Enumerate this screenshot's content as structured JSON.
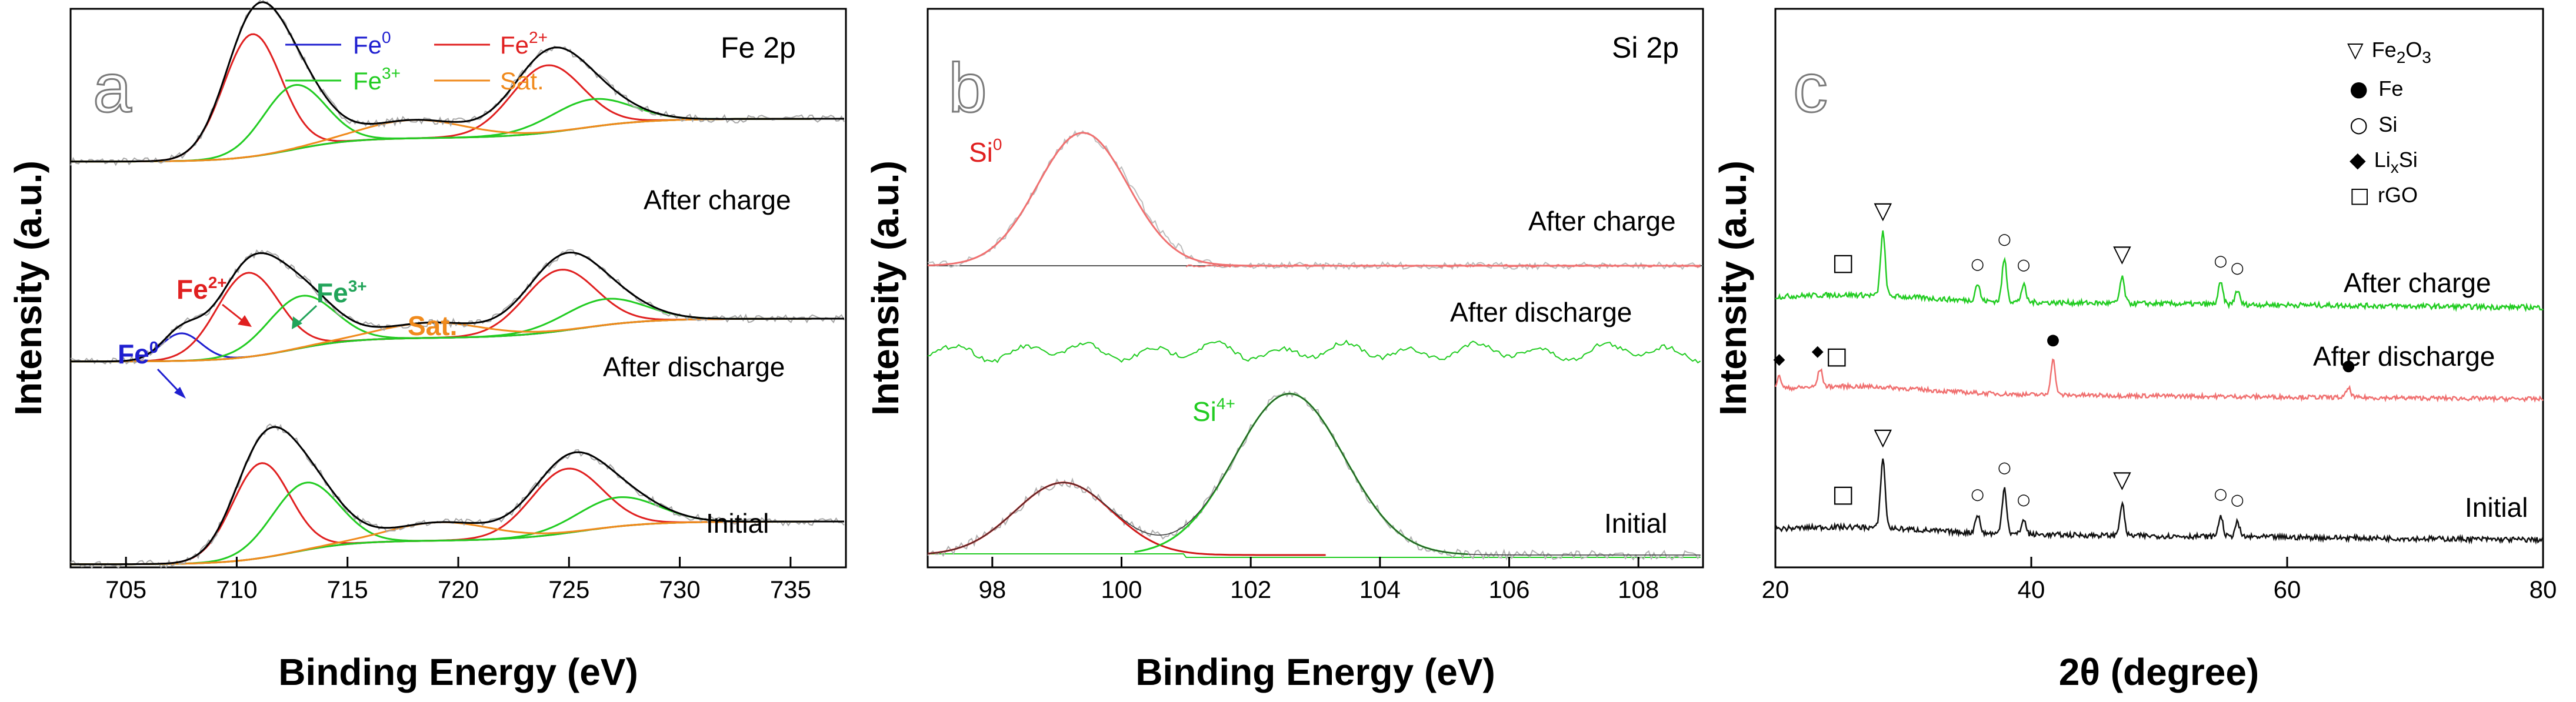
{
  "chart_data": [
    {
      "type": "line",
      "panel": "a",
      "title": "Fe 2p",
      "xlabel": "Binding Energy (eV)",
      "ylabel": "Intensity (a.u.)",
      "xlim": [
        702.5,
        737.5
      ],
      "x_ticks": [
        "705",
        "710",
        "715",
        "720",
        "725",
        "730",
        "735"
      ],
      "legend": [
        {
          "base": "Fe",
          "sup": "0",
          "color": "#1f1fd0"
        },
        {
          "base": "Fe",
          "sup": "2+",
          "color": "#e02020"
        },
        {
          "base": "Fe",
          "sup": "3+",
          "color": "#22cc22"
        },
        {
          "base": "Sat.",
          "sup": "",
          "color": "#f08a1c"
        }
      ],
      "spectra": [
        {
          "name": "After charge",
          "peaks": [
            {
              "label": "Fe2+",
              "color": "#e02020",
              "center": 710.7,
              "height": 0.8,
              "width": 1.3
            },
            {
              "label": "Fe2+",
              "color": "#e02020",
              "center": 724.0,
              "height": 0.44,
              "width": 1.6
            },
            {
              "label": "Fe3+",
              "color": "#22cc22",
              "center": 712.6,
              "height": 0.42,
              "width": 1.4
            },
            {
              "label": "Fe3+",
              "color": "#22cc22",
              "center": 726.0,
              "height": 0.18,
              "width": 1.8
            },
            {
              "label": "Sat.",
              "color": "#f08a1c",
              "center": 718.0,
              "height": 0.12,
              "width": 2.3
            }
          ]
        },
        {
          "name": "After discharge",
          "peaks": [
            {
              "label": "Fe0",
              "color": "#1f1fd0",
              "center": 707.5,
              "height": 0.18,
              "width": 0.9
            },
            {
              "label": "Fe2+",
              "color": "#e02020",
              "center": 710.5,
              "height": 0.55,
              "width": 1.4
            },
            {
              "label": "Fe3+",
              "color": "#22cc22",
              "center": 712.9,
              "height": 0.34,
              "width": 1.5
            },
            {
              "label": "Fe2+",
              "color": "#e02020",
              "center": 724.6,
              "height": 0.4,
              "width": 1.6
            },
            {
              "label": "Fe3+",
              "color": "#22cc22",
              "center": 726.6,
              "height": 0.17,
              "width": 1.8
            },
            {
              "label": "Sat.",
              "color": "#f08a1c",
              "center": 718.8,
              "height": 0.1,
              "width": 2.3
            }
          ],
          "annotations": [
            {
              "base": "Fe",
              "sup": "0",
              "color": "#1f1fd0"
            },
            {
              "base": "Fe",
              "sup": "2+",
              "color": "#e02020"
            },
            {
              "base": "Fe",
              "sup": "3+",
              "color": "#22a45a"
            },
            {
              "base": "Sat.",
              "sup": "",
              "color": "#f08a1c"
            }
          ]
        },
        {
          "name": "Initial",
          "peaks": [
            {
              "label": "Fe2+",
              "color": "#e02020",
              "center": 711.1,
              "height": 0.62,
              "width": 1.3
            },
            {
              "label": "Fe3+",
              "color": "#22cc22",
              "center": 713.1,
              "height": 0.44,
              "width": 1.5
            },
            {
              "label": "Fe2+",
              "color": "#e02020",
              "center": 724.9,
              "height": 0.42,
              "width": 1.6
            },
            {
              "label": "Fe3+",
              "color": "#22cc22",
              "center": 727.2,
              "height": 0.19,
              "width": 1.8
            },
            {
              "label": "Sat.",
              "color": "#f08a1c",
              "center": 719.2,
              "height": 0.12,
              "width": 2.3
            }
          ]
        }
      ]
    },
    {
      "type": "line",
      "panel": "b",
      "title": "Si 2p",
      "xlabel": "Binding Energy (eV)",
      "ylabel": "Intensity (a.u.)",
      "xlim": [
        97,
        109
      ],
      "x_ticks": [
        "98",
        "100",
        "102",
        "104",
        "106",
        "108"
      ],
      "spectra": [
        {
          "name": "After charge",
          "peaks": [
            {
              "label": "Si0",
              "color": "#f07070",
              "center": 99.4,
              "height": 0.78,
              "width": 0.7
            }
          ]
        },
        {
          "name": "After discharge",
          "peaks": []
        },
        {
          "name": "Initial",
          "peaks": [
            {
              "label": "Si0",
              "color": "#d01818",
              "center": 99.1,
              "height": 0.44,
              "width": 0.75
            },
            {
              "label": "Si4+",
              "color": "#22cc22",
              "center": 102.6,
              "height": 0.98,
              "width": 0.85
            }
          ]
        }
      ],
      "annotations": [
        {
          "base": "Si",
          "sup": "0",
          "color": "#e02020"
        },
        {
          "base": "Si",
          "sup": "4+",
          "color": "#22cc22"
        }
      ]
    },
    {
      "type": "line",
      "panel": "c",
      "xlabel": "2θ (degree)",
      "ylabel": "Intensity (a.u.)",
      "xlim": [
        20,
        80
      ],
      "x_ticks": [
        "20",
        "40",
        "60",
        "80"
      ],
      "legend": [
        {
          "marker": "▽",
          "base": "Fe",
          "sub1": "2",
          "mid": "O",
          "sub2": "3"
        },
        {
          "marker": "●",
          "base": "Fe",
          "sub1": "",
          "mid": "",
          "sub2": ""
        },
        {
          "marker": "○",
          "base": "Si",
          "sub1": "",
          "mid": "",
          "sub2": ""
        },
        {
          "marker": "◆",
          "base": "Li",
          "sub1": "x",
          "mid": "Si",
          "sub2": ""
        },
        {
          "marker": "□",
          "base": "rGO",
          "sub1": "",
          "mid": "",
          "sub2": ""
        }
      ],
      "patterns": [
        {
          "name": "After charge",
          "color": "#22cc22",
          "peaks": [
            [
              28.4,
              0.45
            ],
            [
              35.8,
              0.12
            ],
            [
              37.9,
              0.3
            ],
            [
              39.4,
              0.12
            ],
            [
              47.1,
              0.18
            ],
            [
              54.8,
              0.15
            ],
            [
              56.1,
              0.1
            ]
          ],
          "markers": [
            [
              "□",
              25.3
            ],
            [
              "▽",
              28.4
            ],
            [
              "○",
              35.8
            ],
            [
              "○",
              37.9
            ],
            [
              "○",
              39.4
            ],
            [
              "▽",
              47.1
            ],
            [
              "○",
              54.8
            ],
            [
              "○",
              56.1
            ]
          ]
        },
        {
          "name": "After discharge",
          "color": "#f07070",
          "peaks": [
            [
              20.3,
              0.1
            ],
            [
              23.5,
              0.15
            ],
            [
              41.7,
              0.3
            ],
            [
              64.8,
              0.08
            ]
          ],
          "markers": [
            [
              "◆",
              20.3
            ],
            [
              "◆",
              23.3
            ],
            [
              "□",
              24.8
            ],
            [
              "●",
              41.7
            ],
            [
              "●",
              64.8
            ]
          ]
        },
        {
          "name": "Initial",
          "color": "#111111",
          "peaks": [
            [
              28.4,
              0.48
            ],
            [
              35.8,
              0.13
            ],
            [
              37.9,
              0.32
            ],
            [
              39.4,
              0.1
            ],
            [
              47.1,
              0.22
            ],
            [
              54.8,
              0.14
            ],
            [
              56.1,
              0.1
            ]
          ],
          "markers": [
            [
              "□",
              25.3
            ],
            [
              "▽",
              28.4
            ],
            [
              "○",
              35.8
            ],
            [
              "○",
              37.9
            ],
            [
              "○",
              39.4
            ],
            [
              "▽",
              47.1
            ],
            [
              "○",
              54.8
            ],
            [
              "○",
              56.1
            ]
          ]
        }
      ]
    }
  ]
}
